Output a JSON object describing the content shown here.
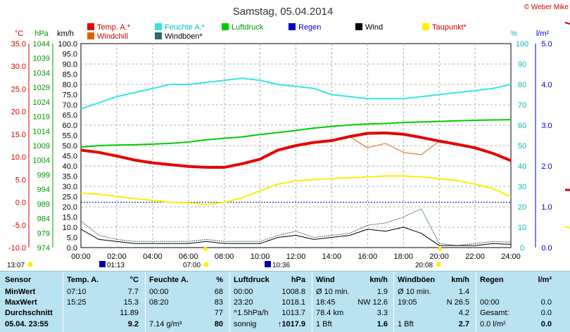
{
  "header": {
    "date_title": "Samstag, 05.04.2014",
    "copyright": "© Weber Mike"
  },
  "colors": {
    "temp": "#e60000",
    "humidity": "#33e6e6",
    "pressure": "#00cc00",
    "rain": "#0000cc",
    "wind": "#000000",
    "dewpoint": "#ffee00",
    "windchill": "#e06000",
    "gust": "#336666",
    "table_bg": "#b9e3f0"
  },
  "chart_data": {
    "type": "line",
    "x_ticks": [
      "00:00",
      "02:00",
      "04:00",
      "06:00",
      "08:00",
      "10:00",
      "12:00",
      "14:00",
      "16:00",
      "18:00",
      "20:00",
      "22:00",
      "24:00"
    ],
    "axes": {
      "temp": {
        "unit": "°C",
        "ticks": [
          "35.0",
          "30.0",
          "25.0",
          "20.0",
          "15.0",
          "10.0",
          "5.0",
          "0.0",
          "-5.0",
          "-10.0"
        ],
        "range": [
          -10,
          35
        ]
      },
      "pressure": {
        "unit": "hPa",
        "ticks": [
          "1044",
          "1039",
          "1034",
          "1029",
          "1024",
          "1019",
          "1014",
          "1009",
          "1004",
          "999",
          "994",
          "989",
          "984",
          "979",
          "974"
        ],
        "range": [
          974,
          1044
        ]
      },
      "wind": {
        "unit": "km/h",
        "ticks": [
          "100.0",
          "95.0",
          "90.0",
          "85.0",
          "80.0",
          "75.0",
          "70.0",
          "65.0",
          "60.0",
          "55.0",
          "50.0",
          "45.0",
          "40.0",
          "35.0",
          "30.0",
          "25.0",
          "20.0",
          "15.0",
          "10.0",
          "5.0",
          "0.0"
        ],
        "range": [
          0,
          100
        ]
      },
      "humidity": {
        "unit": "%",
        "ticks": [
          "100",
          "90",
          "80",
          "70",
          "60",
          "50",
          "40",
          "30",
          "20",
          "10",
          "0"
        ],
        "range": [
          0,
          100
        ]
      },
      "rain": {
        "unit": "l/m²",
        "ticks": [
          "5.0",
          "4.0",
          "3.0",
          "2.0",
          "1.0",
          "0.0"
        ],
        "range": [
          0,
          5
        ]
      }
    },
    "legend": [
      {
        "name": "Temp. A.*",
        "key": "temp"
      },
      {
        "name": "Feuchte A.*",
        "key": "humidity"
      },
      {
        "name": "Luftdruck",
        "key": "pressure"
      },
      {
        "name": "Regen",
        "key": "rain"
      },
      {
        "name": "Wind",
        "key": "wind"
      },
      {
        "name": "Taupunkt*",
        "key": "dewpoint"
      },
      {
        "name": "Windchill",
        "key": "windchill"
      },
      {
        "name": "Windböen*",
        "key": "gust"
      }
    ],
    "x_hours": [
      0,
      1,
      2,
      3,
      4,
      5,
      6,
      7,
      8,
      9,
      10,
      11,
      12,
      13,
      14,
      15,
      16,
      17,
      18,
      19,
      20,
      21,
      22,
      23,
      24
    ],
    "series": {
      "temp": [
        11.5,
        11.0,
        10.2,
        9.3,
        8.7,
        8.3,
        7.9,
        7.7,
        7.7,
        8.5,
        9.5,
        11.5,
        12.5,
        13.2,
        13.6,
        14.5,
        15.2,
        15.3,
        15.0,
        14.3,
        13.5,
        12.8,
        12.0,
        10.8,
        9.2
      ],
      "humidity": [
        68,
        71,
        74,
        76,
        78,
        80,
        80,
        81,
        82,
        83,
        82,
        80,
        79,
        78,
        75,
        74,
        73,
        73,
        73,
        74,
        75,
        76,
        77,
        78,
        80
      ],
      "pressure": [
        1008.5,
        1009.0,
        1009.2,
        1009.3,
        1009.5,
        1009.8,
        1010.2,
        1011.0,
        1011.5,
        1012.0,
        1012.8,
        1013.5,
        1014.2,
        1015.0,
        1015.6,
        1016.1,
        1016.4,
        1016.6,
        1016.9,
        1017.1,
        1017.3,
        1017.5,
        1017.7,
        1017.8,
        1017.9
      ],
      "dewpoint": [
        2.0,
        1.8,
        1.3,
        0.8,
        0.4,
        0.0,
        -0.1,
        -0.5,
        0.0,
        1.0,
        2.5,
        4.0,
        4.7,
        5.0,
        5.2,
        5.4,
        5.6,
        5.8,
        5.8,
        5.6,
        5.2,
        4.8,
        4.0,
        3.0,
        1.2
      ],
      "windchill": [
        11.5,
        11.0,
        10.2,
        9.3,
        8.7,
        8.3,
        7.9,
        7.7,
        7.7,
        8.5,
        9.5,
        11.5,
        12.5,
        13.2,
        13.6,
        14.5,
        12.0,
        13.0,
        11.0,
        10.5,
        13.5,
        12.8,
        12.0,
        10.8,
        9.2
      ],
      "wind": [
        9,
        4,
        3,
        2,
        2,
        2,
        2,
        3,
        2,
        2,
        2,
        5,
        6,
        4,
        5,
        6,
        9,
        8,
        10,
        7,
        1,
        1,
        1,
        2,
        1.6
      ],
      "gust": [
        13,
        6,
        4,
        3,
        3,
        3,
        3,
        4,
        3,
        3,
        3,
        6,
        8,
        5,
        6,
        7,
        11,
        12,
        15,
        19,
        2,
        1,
        2,
        3,
        2.7
      ]
    },
    "rain_level": 1.0,
    "markers": [
      {
        "label": "13:07"
      },
      {
        "label": "01:13"
      },
      {
        "label": "07:00"
      },
      {
        "label": "10:36"
      },
      {
        "label": "20:08"
      }
    ]
  },
  "table": {
    "row_labels": [
      "Sensor",
      "MinWert",
      "MaxWert",
      "Durchschnitt",
      "05.04.  23:55"
    ],
    "columns": [
      {
        "title": "Temp. A.",
        "unit": "°C",
        "rows": [
          [
            "07:10",
            "7.7"
          ],
          [
            "15:25",
            "15.3"
          ],
          [
            "",
            "11.89"
          ],
          [
            "",
            "9.2"
          ]
        ]
      },
      {
        "title": "Feuchte A.",
        "unit": "%",
        "rows": [
          [
            "00:00",
            "68"
          ],
          [
            "08:20",
            "83"
          ],
          [
            "",
            "77"
          ],
          [
            "7.14 g/m³",
            "80"
          ]
        ]
      },
      {
        "title": "Luftdruck",
        "unit": "hPa",
        "rows": [
          [
            "00:00",
            "1008.8"
          ],
          [
            "23:20",
            "1018.1"
          ],
          [
            "^1.5hPa/h",
            "1013.7"
          ],
          [
            "sonnig",
            "↑1017.9"
          ]
        ]
      },
      {
        "title": "Wind",
        "unit": "km/h",
        "rows": [
          [
            "Ø 10 min.",
            "1.9"
          ],
          [
            "18:45",
            "NW 12.6"
          ],
          [
            "78.4 km",
            "3.3"
          ],
          [
            "1 Bft",
            "1.6"
          ]
        ]
      },
      {
        "title": "Windböen",
        "unit": "km/h",
        "rows": [
          [
            "Ø 10 min.",
            "1.4"
          ],
          [
            "19:05",
            "N 26.5"
          ],
          [
            "",
            "4.2"
          ],
          [
            "1 Bft",
            "2.7"
          ]
        ]
      },
      {
        "title": "Regen",
        "unit": "l/m²",
        "rows": [
          [
            "",
            ""
          ],
          [
            "00:00",
            "0.0"
          ],
          [
            "Gesamt:",
            "0.0"
          ],
          [
            "0.0 l/m²",
            "0.0"
          ]
        ]
      }
    ]
  }
}
